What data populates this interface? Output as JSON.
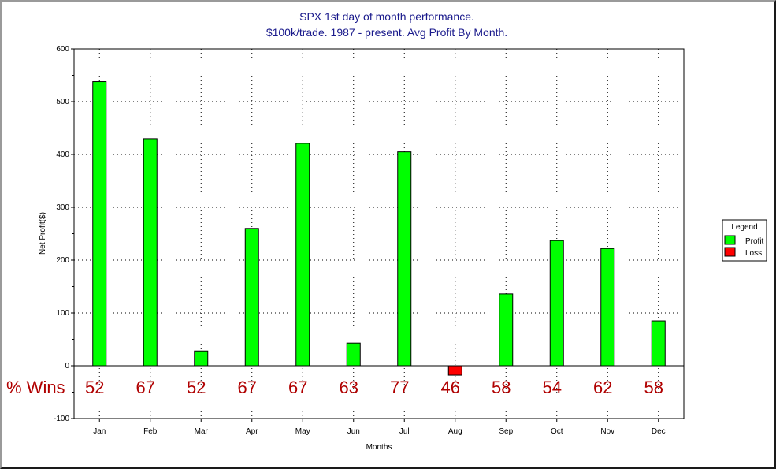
{
  "chart_data": {
    "type": "bar",
    "title": "SPX 1st day of month performance.",
    "subtitle": "$100k/trade. 1987 - present. Avg Profit By Month.",
    "xlabel": "Months",
    "ylabel": "Net Profit($)",
    "ylim": [
      -100,
      600
    ],
    "yticks": [
      600,
      500,
      400,
      300,
      200,
      100,
      0,
      -100
    ],
    "categories": [
      "Jan",
      "Feb",
      "Mar",
      "Apr",
      "May",
      "Jun",
      "Jul",
      "Aug",
      "Sep",
      "Oct",
      "Nov",
      "Dec"
    ],
    "values": [
      538,
      430,
      28,
      260,
      421,
      43,
      405,
      -18,
      136,
      237,
      222,
      85
    ],
    "grid": true,
    "legend": {
      "title": "Legend",
      "placement": "right",
      "entries": [
        {
          "label": "Profit",
          "color": "#00ff00"
        },
        {
          "label": "Loss",
          "color": "#ff0000"
        }
      ]
    },
    "colors": {
      "profit": "#00ff00",
      "loss": "#ff0000",
      "title": "#1a1a8c",
      "annotation": "#b00000"
    },
    "annotation": {
      "label": "% Wins",
      "values": [
        "52",
        "67",
        "52",
        "67",
        "67",
        "63",
        "77",
        "46",
        "58",
        "54",
        "62",
        "58"
      ]
    }
  }
}
